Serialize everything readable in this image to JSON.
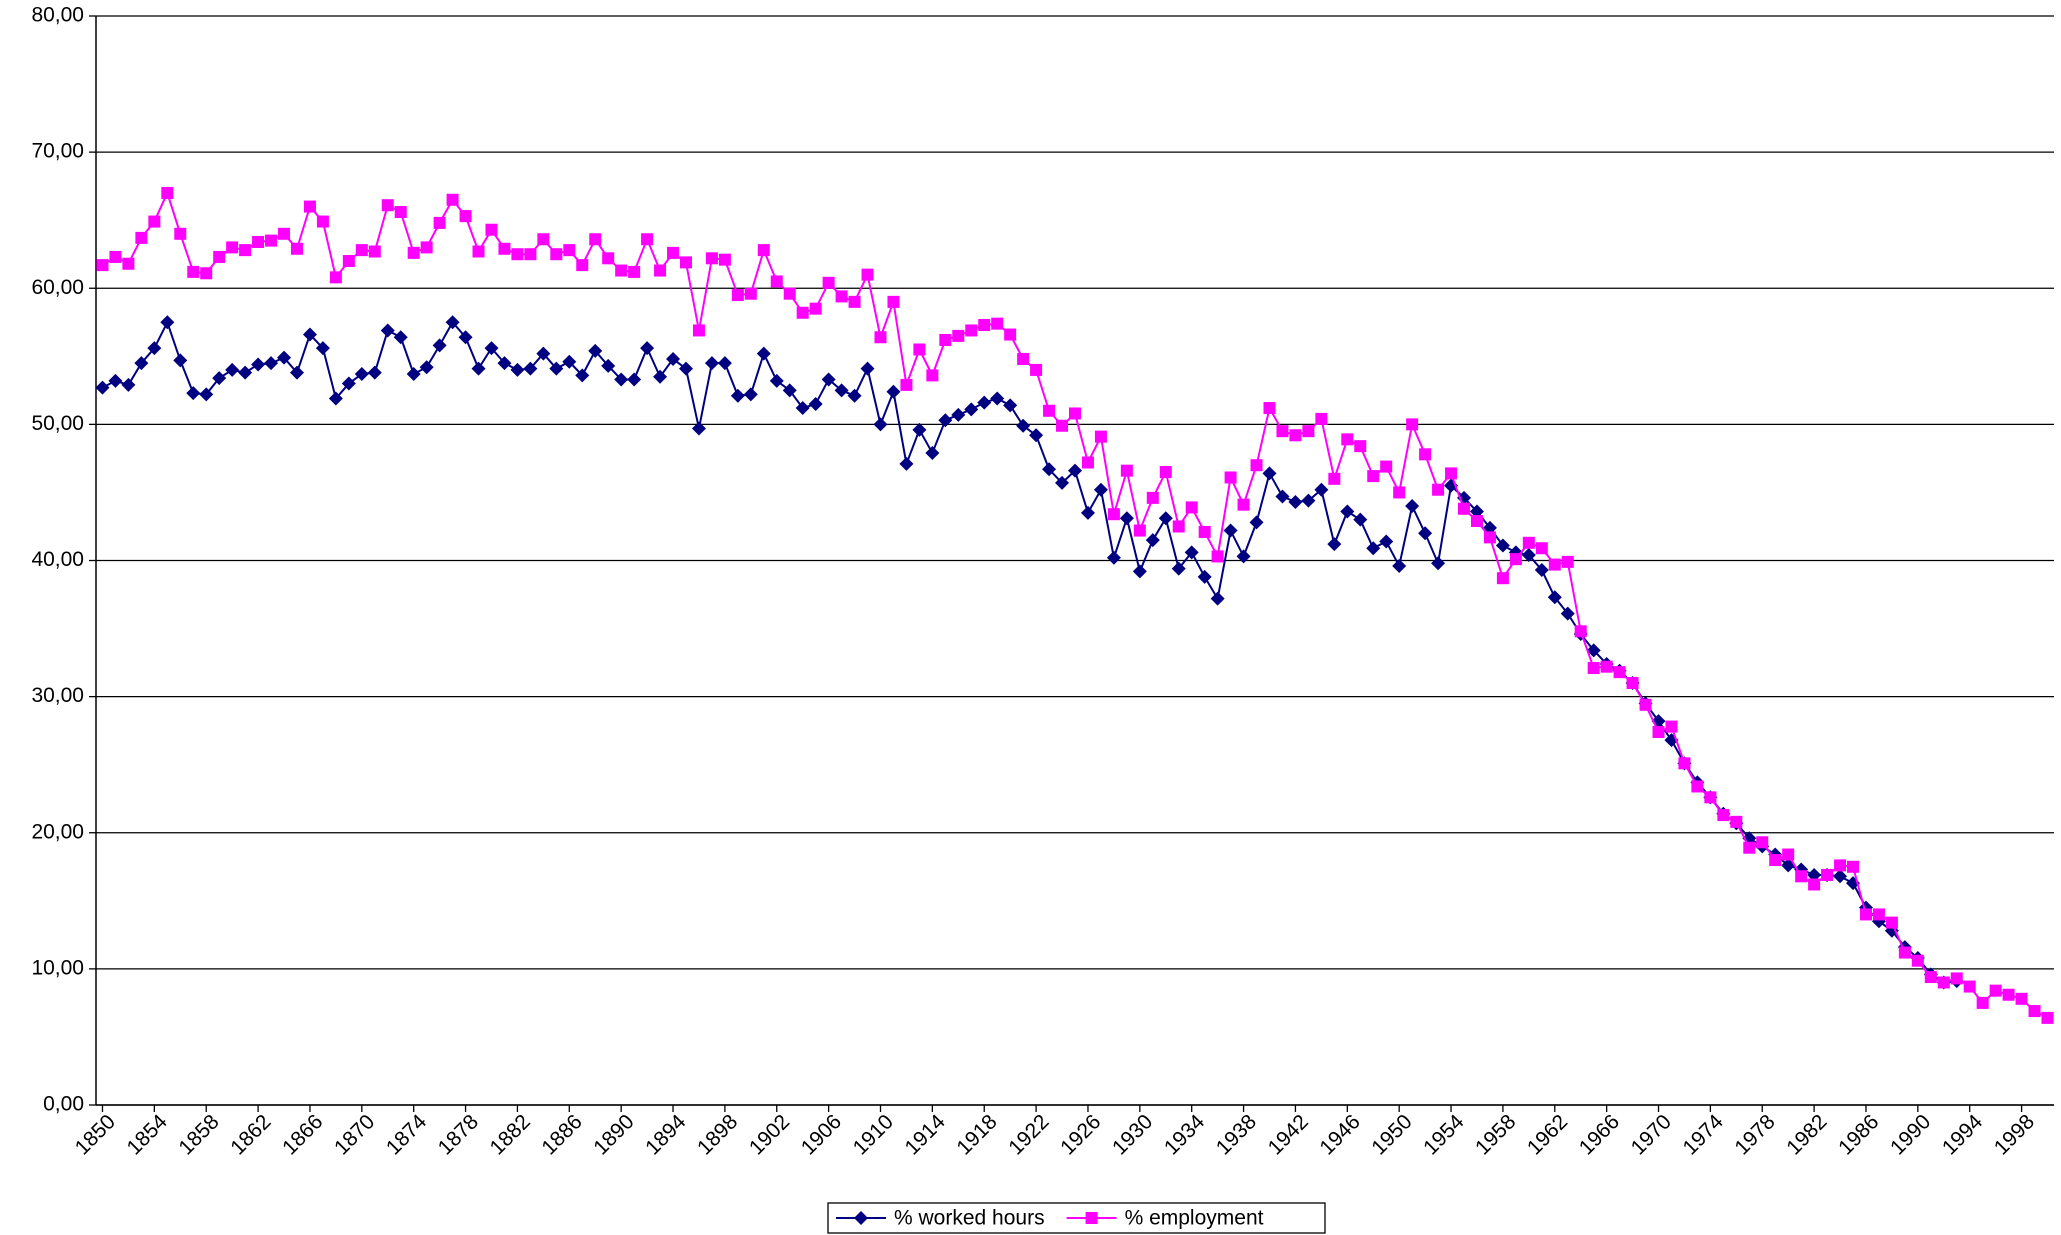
{
  "chart_data": {
    "type": "line",
    "x": [
      1850,
      1851,
      1852,
      1853,
      1854,
      1855,
      1856,
      1857,
      1858,
      1859,
      1860,
      1861,
      1862,
      1863,
      1864,
      1865,
      1866,
      1867,
      1868,
      1869,
      1870,
      1871,
      1872,
      1873,
      1874,
      1875,
      1876,
      1877,
      1878,
      1879,
      1880,
      1881,
      1882,
      1883,
      1884,
      1885,
      1886,
      1887,
      1888,
      1889,
      1890,
      1891,
      1892,
      1893,
      1894,
      1895,
      1896,
      1897,
      1898,
      1899,
      1900,
      1901,
      1902,
      1903,
      1904,
      1905,
      1906,
      1907,
      1908,
      1909,
      1910,
      1911,
      1912,
      1913,
      1914,
      1915,
      1916,
      1917,
      1918,
      1919,
      1920,
      1921,
      1922,
      1923,
      1924,
      1925,
      1926,
      1927,
      1928,
      1929,
      1930,
      1931,
      1932,
      1933,
      1934,
      1935,
      1936,
      1937,
      1938,
      1939,
      1940,
      1941,
      1942,
      1943,
      1944,
      1945,
      1946,
      1947,
      1948,
      1949,
      1950,
      1951,
      1952,
      1953,
      1954,
      1955,
      1956,
      1957,
      1958,
      1959,
      1960,
      1961,
      1962,
      1963,
      1964,
      1965,
      1966,
      1967,
      1968,
      1969,
      1970,
      1971,
      1972,
      1973,
      1974,
      1975,
      1976,
      1977,
      1978,
      1979,
      1980,
      1981,
      1982,
      1983,
      1984,
      1985,
      1986,
      1987,
      1988,
      1989,
      1990,
      1991,
      1992,
      1993,
      1994,
      1995,
      1996,
      1997,
      1998,
      1999,
      2000
    ],
    "series": [
      {
        "name": "% worked hours",
        "color": "#000080",
        "marker": "diamond",
        "values": [
          52.7,
          53.2,
          52.9,
          54.5,
          55.6,
          57.5,
          54.7,
          52.3,
          52.2,
          53.4,
          54.0,
          53.8,
          54.4,
          54.5,
          54.9,
          53.8,
          56.6,
          55.6,
          51.9,
          53.0,
          53.7,
          53.8,
          56.9,
          56.4,
          53.7,
          54.2,
          55.8,
          57.5,
          56.4,
          54.1,
          55.6,
          54.5,
          54.0,
          54.1,
          55.2,
          54.1,
          54.6,
          53.6,
          55.4,
          54.3,
          53.3,
          53.3,
          55.6,
          53.5,
          54.8,
          54.1,
          49.7,
          54.5,
          54.5,
          52.1,
          52.2,
          55.2,
          53.2,
          52.5,
          51.2,
          51.5,
          53.3,
          52.5,
          52.1,
          54.1,
          50.0,
          52.4,
          47.1,
          49.6,
          47.9,
          50.3,
          50.7,
          51.1,
          51.6,
          51.9,
          51.4,
          49.9,
          49.2,
          46.7,
          45.7,
          46.6,
          43.5,
          45.2,
          40.2,
          43.1,
          39.2,
          41.5,
          43.1,
          39.4,
          40.6,
          38.8,
          37.2,
          42.2,
          40.3,
          42.8,
          46.4,
          44.7,
          44.3,
          44.4,
          45.2,
          41.2,
          43.6,
          43.0,
          40.9,
          41.4,
          39.6,
          44.0,
          42.0,
          39.8,
          45.5,
          44.6,
          43.6,
          42.4,
          41.1,
          40.6,
          40.4,
          39.3,
          37.3,
          36.1,
          34.6,
          33.4,
          32.4,
          31.9,
          31.0,
          29.5,
          28.2,
          26.8,
          25.1,
          23.7,
          22.6,
          21.4,
          20.7,
          19.6,
          19.0,
          18.4,
          17.6,
          17.3,
          16.9,
          16.9,
          16.8,
          16.3,
          14.5,
          13.5,
          12.8,
          11.6,
          10.8,
          9.6,
          9.0,
          9.1,
          null,
          null,
          null,
          null,
          null,
          null,
          null
        ]
      },
      {
        "name": "% employment",
        "color": "#ff00ff",
        "marker": "square",
        "values": [
          61.7,
          62.3,
          61.8,
          63.7,
          64.9,
          67.0,
          64.0,
          61.2,
          61.1,
          62.3,
          63.0,
          62.8,
          63.4,
          63.5,
          64.0,
          62.9,
          66.0,
          64.9,
          60.8,
          62.0,
          62.8,
          62.7,
          66.1,
          65.6,
          62.6,
          63.0,
          64.8,
          66.5,
          65.3,
          62.7,
          64.3,
          62.9,
          62.5,
          62.5,
          63.6,
          62.5,
          62.8,
          61.7,
          63.6,
          62.2,
          61.3,
          61.2,
          63.6,
          61.3,
          62.6,
          61.9,
          56.9,
          62.2,
          62.1,
          59.5,
          59.6,
          62.8,
          60.5,
          59.6,
          58.2,
          58.5,
          60.4,
          59.4,
          59.0,
          61.0,
          56.4,
          59.0,
          52.9,
          55.5,
          53.6,
          56.2,
          56.5,
          56.9,
          57.3,
          57.4,
          56.6,
          54.8,
          54.0,
          51.0,
          49.9,
          50.8,
          47.2,
          49.1,
          43.4,
          46.6,
          42.2,
          44.6,
          46.5,
          42.5,
          43.9,
          42.1,
          40.3,
          46.1,
          44.1,
          47.0,
          51.2,
          49.5,
          49.2,
          49.5,
          50.4,
          46.0,
          48.9,
          48.4,
          46.2,
          46.9,
          45.0,
          50.0,
          47.8,
          45.2,
          46.4,
          43.8,
          42.9,
          41.7,
          38.7,
          40.1,
          41.3,
          40.9,
          39.7,
          39.9,
          34.8,
          32.1,
          32.2,
          31.8,
          31.0,
          29.4,
          27.4,
          27.8,
          25.1,
          23.4,
          22.6,
          21.3,
          20.8,
          18.9,
          19.3,
          18.0,
          18.4,
          16.8,
          16.2,
          16.9,
          17.6,
          17.5,
          14.0,
          14.0,
          13.4,
          11.2,
          10.6,
          9.4,
          9.0,
          9.3,
          8.7,
          7.5,
          8.4,
          8.1,
          7.8,
          6.9,
          6.4
        ]
      }
    ],
    "xlim": [
      1849.5,
      2000.5
    ],
    "xticks": [
      1850,
      1854,
      1858,
      1862,
      1866,
      1870,
      1874,
      1878,
      1882,
      1886,
      1890,
      1894,
      1898,
      1902,
      1906,
      1910,
      1914,
      1918,
      1922,
      1926,
      1930,
      1934,
      1938,
      1942,
      1946,
      1950,
      1954,
      1958,
      1962,
      1966,
      1970,
      1974,
      1978,
      1982,
      1986,
      1990,
      1994,
      1998
    ],
    "ylim": [
      0,
      80
    ],
    "yticks": [
      {
        "value": 0,
        "label": "0,00"
      },
      {
        "value": 10,
        "label": "10,00"
      },
      {
        "value": 20,
        "label": "20,00"
      },
      {
        "value": 30,
        "label": "30,00"
      },
      {
        "value": 40,
        "label": "40,00"
      },
      {
        "value": 50,
        "label": "50,00"
      },
      {
        "value": 60,
        "label": "60,00"
      },
      {
        "value": 70,
        "label": "70,00"
      },
      {
        "value": 80,
        "label": "80,00"
      }
    ],
    "grid": true,
    "legend": "bottom"
  }
}
